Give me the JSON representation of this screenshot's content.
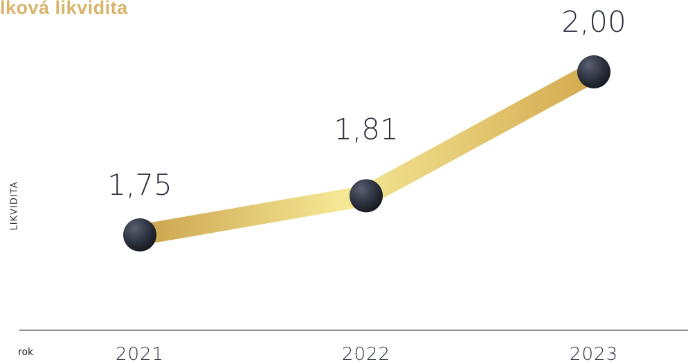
{
  "title": "lková likvidita",
  "colors": {
    "title": "#d8b46a",
    "line_light": "#f7ec9a",
    "line_dark": "#cfa44e",
    "marker": "#2a2e3b",
    "axis": "#8f8f8f",
    "text": "#2b2f3c"
  },
  "chart_data": {
    "type": "line",
    "title": "lková likvidita",
    "xlabel": "rok",
    "ylabel": "LIKVIDITA",
    "categories": [
      "2021",
      "2022",
      "2023"
    ],
    "series": [
      {
        "values": [
          1.75,
          1.81,
          2.0
        ],
        "labels": [
          "1,75",
          "1,81",
          "2,00"
        ]
      }
    ],
    "grid": false,
    "legend": "none"
  }
}
